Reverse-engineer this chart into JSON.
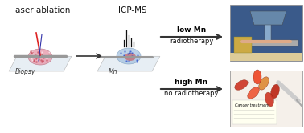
{
  "bg_color": "#ffffff",
  "title_laser": "laser ablation",
  "title_icpms": "ICP-MS",
  "label_biopsy": "Biopsy",
  "label_mn": "Mn",
  "arrow_low_top": "low Mn",
  "arrow_low_bot": "radiotherapy",
  "arrow_high_top": "high Mn",
  "arrow_high_bot": "no radiotherapy",
  "fig_width": 3.78,
  "fig_height": 1.66,
  "dpi": 100,
  "plate_color": "#dde8f0",
  "tissue_pink": "#e8a0b0",
  "tissue_blue": "#a0c0e0",
  "tissue_red": "#cc3333",
  "laser_red": "#dd2222",
  "laser_blue": "#3333aa",
  "arrow_color": "#333333",
  "text_color": "#111111",
  "bold_text_color": "#000000",
  "spectrum_color": "#111111"
}
